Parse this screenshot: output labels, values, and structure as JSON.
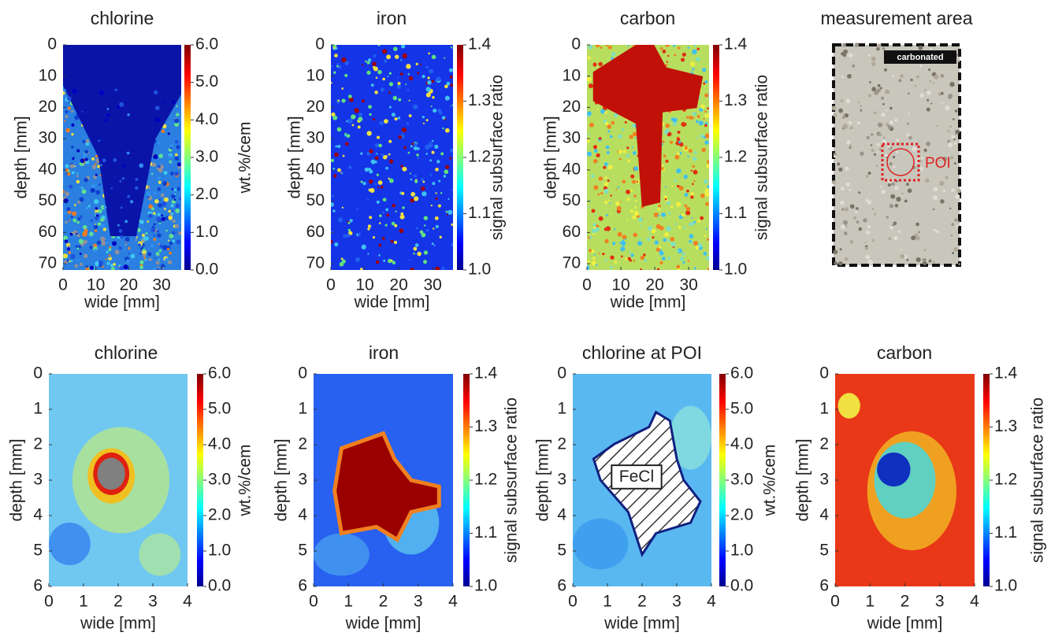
{
  "chart_data": [
    {
      "type": "heatmap",
      "title": "chlorine",
      "xlabel": "wide [mm]",
      "ylabel": "depth [mm]",
      "xlim": [
        0,
        36
      ],
      "ylim": [
        0,
        72
      ],
      "xticks": [
        0,
        10,
        20,
        30
      ],
      "yticks": [
        0,
        10,
        20,
        30,
        40,
        50,
        60,
        70
      ],
      "colorbar": {
        "label": "wt.%/cem",
        "lim": [
          0,
          6
        ],
        "ticks": [
          {
            "value": 0,
            "label": "0.0"
          },
          {
            "value": 1,
            "label": "1.0"
          },
          {
            "value": 2,
            "label": "2.0"
          },
          {
            "value": 3,
            "label": "3.0"
          },
          {
            "value": 4,
            "label": "4.0"
          },
          {
            "value": 5,
            "label": "5.0"
          },
          {
            "value": 6,
            "label": "6.0"
          }
        ]
      }
    },
    {
      "type": "heatmap",
      "title": "iron",
      "xlabel": "wide [mm]",
      "ylabel": "depth [mm]",
      "xlim": [
        0,
        36
      ],
      "ylim": [
        0,
        72
      ],
      "xticks": [
        0,
        10,
        20,
        30
      ],
      "yticks": [
        0,
        10,
        20,
        30,
        40,
        50,
        60,
        70
      ],
      "colorbar": {
        "label": "signal subsurface ratio",
        "lim": [
          1.0,
          1.4
        ],
        "ticks": [
          {
            "value": 1.0,
            "label": "1.0"
          },
          1.1,
          1.2,
          1.3,
          1.4
        ]
      }
    },
    {
      "type": "heatmap",
      "title": "carbon",
      "xlabel": "wide [mm]",
      "ylabel": "depth [mm]",
      "xlim": [
        0,
        36
      ],
      "ylim": [
        0,
        72
      ],
      "xticks": [
        0,
        10,
        20,
        30
      ],
      "yticks": [
        0,
        10,
        20,
        30,
        40,
        50,
        60,
        70
      ],
      "colorbar": {
        "label": "signal subsurface ratio",
        "lim": [
          1.0,
          1.4
        ],
        "ticks": [
          {
            "value": 1.0,
            "label": "1.0"
          },
          1.1,
          1.2,
          1.3,
          1.4
        ]
      }
    },
    {
      "type": "image",
      "title": "measurement area",
      "annotations": [
        "carbonated",
        "POI"
      ]
    },
    {
      "type": "heatmap",
      "title": "chlorine",
      "xlabel": "wide [mm]",
      "ylabel": "depth [mm]",
      "xlim": [
        0,
        4
      ],
      "ylim": [
        0,
        6
      ],
      "xticks": [
        0,
        1,
        2,
        3,
        4
      ],
      "yticks": [
        0,
        1,
        2,
        3,
        4,
        5,
        6
      ],
      "colorbar": {
        "label": "wt.%/cem",
        "lim": [
          0,
          6
        ],
        "ticks": [
          {
            "value": 0,
            "label": "0.0"
          },
          {
            "value": 1,
            "label": "1.0"
          },
          {
            "value": 2,
            "label": "2.0"
          },
          {
            "value": 3,
            "label": "3.0"
          },
          {
            "value": 4,
            "label": "4.0"
          },
          {
            "value": 5,
            "label": "5.0"
          },
          {
            "value": 6,
            "label": "6.0"
          }
        ]
      }
    },
    {
      "type": "heatmap",
      "title": "iron",
      "xlabel": "wide [mm]",
      "ylabel": "depth [mm]",
      "xlim": [
        0,
        4
      ],
      "ylim": [
        0,
        6
      ],
      "xticks": [
        0,
        1,
        2,
        3,
        4
      ],
      "yticks": [
        0,
        1,
        2,
        3,
        4,
        5,
        6
      ],
      "colorbar": {
        "label": "signal subsurface ratio",
        "lim": [
          1.0,
          1.4
        ],
        "ticks": [
          {
            "value": 1.0,
            "label": "1.0"
          },
          1.1,
          1.2,
          1.3,
          1.4
        ]
      }
    },
    {
      "type": "heatmap",
      "title": "chlorine at POI",
      "xlabel": "wide [mm]",
      "ylabel": "depth [mm]",
      "xlim": [
        0,
        4
      ],
      "ylim": [
        0,
        6
      ],
      "xticks": [
        0,
        1,
        2,
        3,
        4
      ],
      "yticks": [
        0,
        1,
        2,
        3,
        4,
        5,
        6
      ],
      "annotations": [
        "FeCl"
      ],
      "colorbar": {
        "label": "wt.%/cem",
        "lim": [
          0,
          6
        ],
        "ticks": [
          {
            "value": 0,
            "label": "0.0"
          },
          {
            "value": 1,
            "label": "1.0"
          },
          {
            "value": 2,
            "label": "2.0"
          },
          {
            "value": 3,
            "label": "3.0"
          },
          {
            "value": 4,
            "label": "4.0"
          },
          {
            "value": 5,
            "label": "5.0"
          },
          {
            "value": 6,
            "label": "6.0"
          }
        ]
      }
    },
    {
      "type": "heatmap",
      "title": "carbon",
      "xlabel": "wide [mm]",
      "ylabel": "depth [mm]",
      "xlim": [
        0,
        4
      ],
      "ylim": [
        0,
        6
      ],
      "xticks": [
        0,
        1,
        2,
        3,
        4
      ],
      "yticks": [
        0,
        1,
        2,
        3,
        4,
        5,
        6
      ],
      "colorbar": {
        "label": "signal subsurface ratio",
        "lim": [
          1.0,
          1.4
        ],
        "ticks": [
          {
            "value": 1.0,
            "label": "1.0"
          },
          1.1,
          1.2,
          1.3,
          1.4
        ]
      }
    }
  ]
}
